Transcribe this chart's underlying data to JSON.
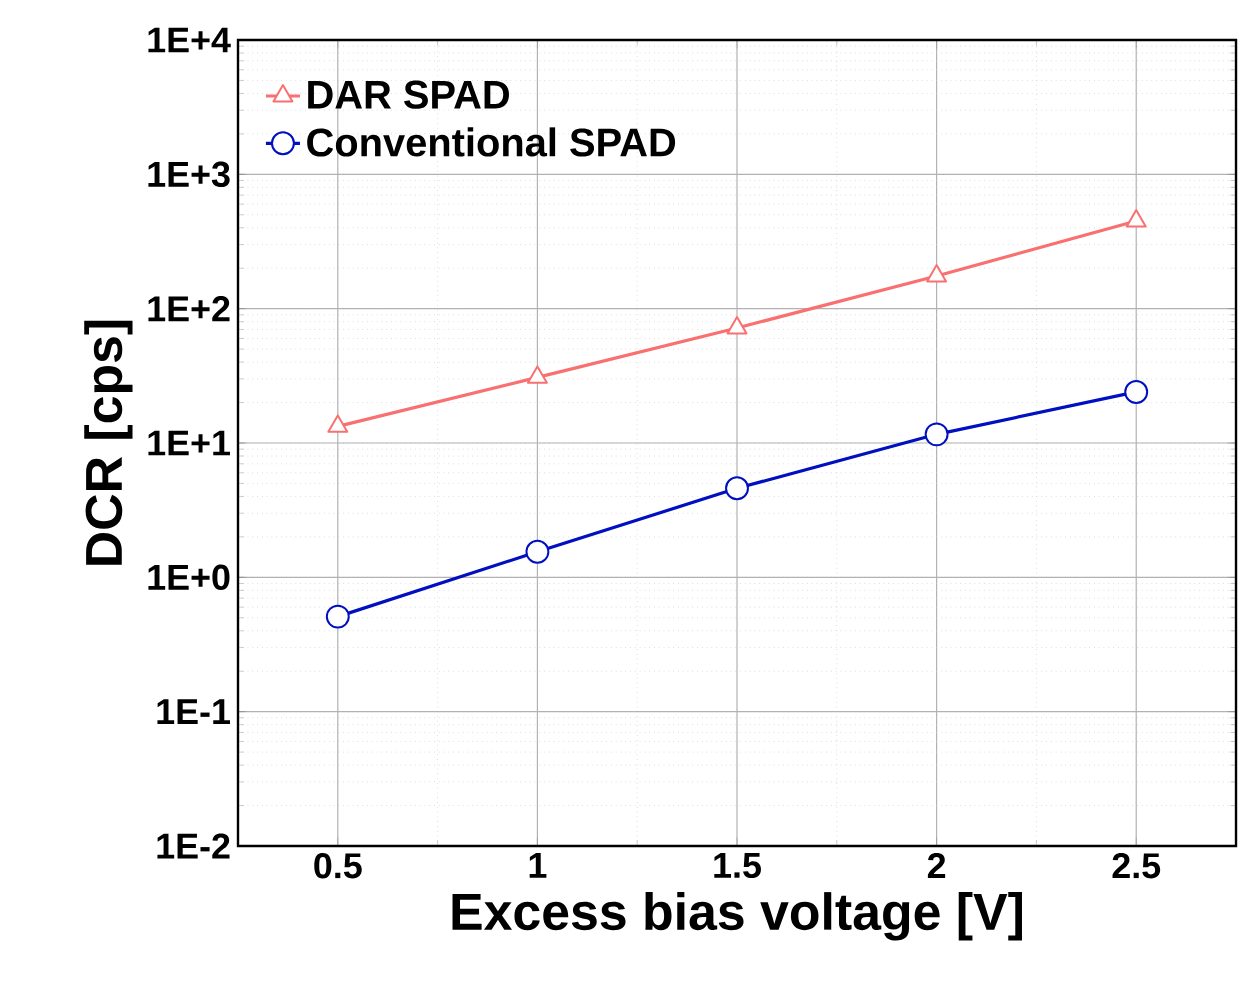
{
  "chart_data": {
    "type": "line",
    "xlabel": "Excess bias voltage [V]",
    "ylabel": "DCR [cps]",
    "x": [
      0.5,
      1,
      1.5,
      2,
      2.5
    ],
    "series": [
      {
        "name": "DAR SPAD",
        "color": "#f87070",
        "marker": "triangle",
        "values": [
          13.3,
          30.8,
          71.8,
          175,
          449
        ]
      },
      {
        "name": "Conventional SPAD",
        "color": "#0010c0",
        "marker": "circle",
        "values": [
          0.51,
          1.55,
          4.6,
          11.6,
          24
        ]
      }
    ],
    "log": "y",
    "grid": true,
    "legend": "top left",
    "line_style": "solid",
    "xlim": [
      0.25,
      2.75
    ],
    "xticks": [
      0.5,
      1,
      1.5,
      2,
      2.5
    ],
    "ylim": [
      0.01,
      10000
    ],
    "yticks": [
      {
        "value": 0.01,
        "label": "1E-2"
      },
      {
        "value": 0.1,
        "label": "1E-1"
      },
      {
        "value": 1,
        "label": "1E+0"
      },
      {
        "value": 10,
        "label": "1E+1"
      },
      {
        "value": 100,
        "label": "1E+2"
      },
      {
        "value": 1000,
        "label": "1E+3"
      },
      {
        "value": 10000,
        "label": "1E+4"
      }
    ]
  }
}
